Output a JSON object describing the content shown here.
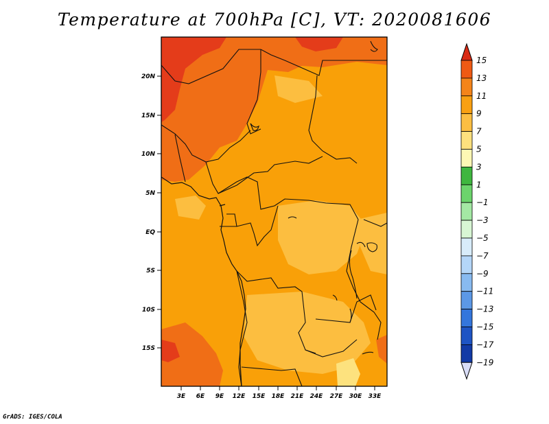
{
  "title": "Temperature at 700hPa [C], VT: 2020081606",
  "credit": "GrADS: IGES/COLA",
  "map": {
    "lat_ticks": [
      "20N",
      "15N",
      "10N",
      "5N",
      "EQ",
      "5S",
      "10S",
      "15S"
    ],
    "lon_ticks": [
      "3E",
      "6E",
      "9E",
      "12E",
      "15E",
      "18E",
      "21E",
      "24E",
      "27E",
      "30E",
      "33E"
    ],
    "field_colors": {
      "t13": "#e43c1a",
      "t11": "#f06e16",
      "t9": "#f9a008",
      "t7": "#fcbe40",
      "t5": "#fde27e"
    }
  },
  "colorbar": {
    "labels": [
      "15",
      "13",
      "11",
      "9",
      "7",
      "5",
      "3",
      "1",
      "−1",
      "−3",
      "−5",
      "−7",
      "−9",
      "−11",
      "−13",
      "−15",
      "−17",
      "−19"
    ],
    "colors": [
      "#d92a14",
      "#ef5a14",
      "#f4841a",
      "#f9a012",
      "#fcbe42",
      "#fde07e",
      "#fef8b4",
      "#3fb63f",
      "#6cd46c",
      "#a4e8a4",
      "#d8f6d4",
      "#d8ecfa",
      "#b4d6f8",
      "#88baf0",
      "#5c98e6",
      "#3476dc",
      "#1e54c4",
      "#123aa6",
      "#0c1e7c"
    ]
  }
}
